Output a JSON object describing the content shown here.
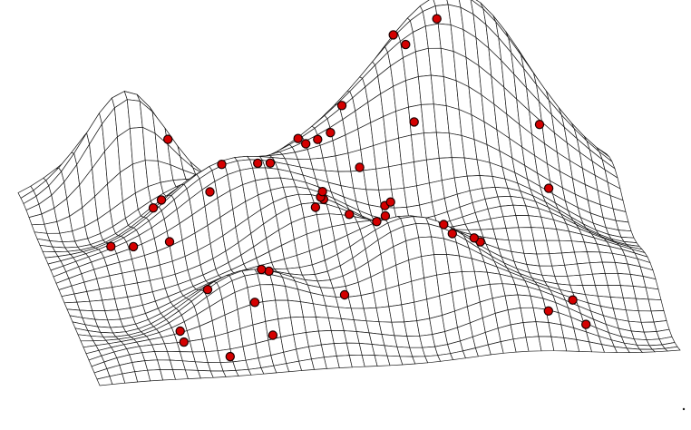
{
  "figure": {
    "description_visible": "",
    "style": {
      "background": "#ffffff",
      "mesh_color": "#1a1a1a",
      "point_fill": "#d40000",
      "point_stroke": "#1a0000"
    },
    "sample_points_count": 47
  }
}
